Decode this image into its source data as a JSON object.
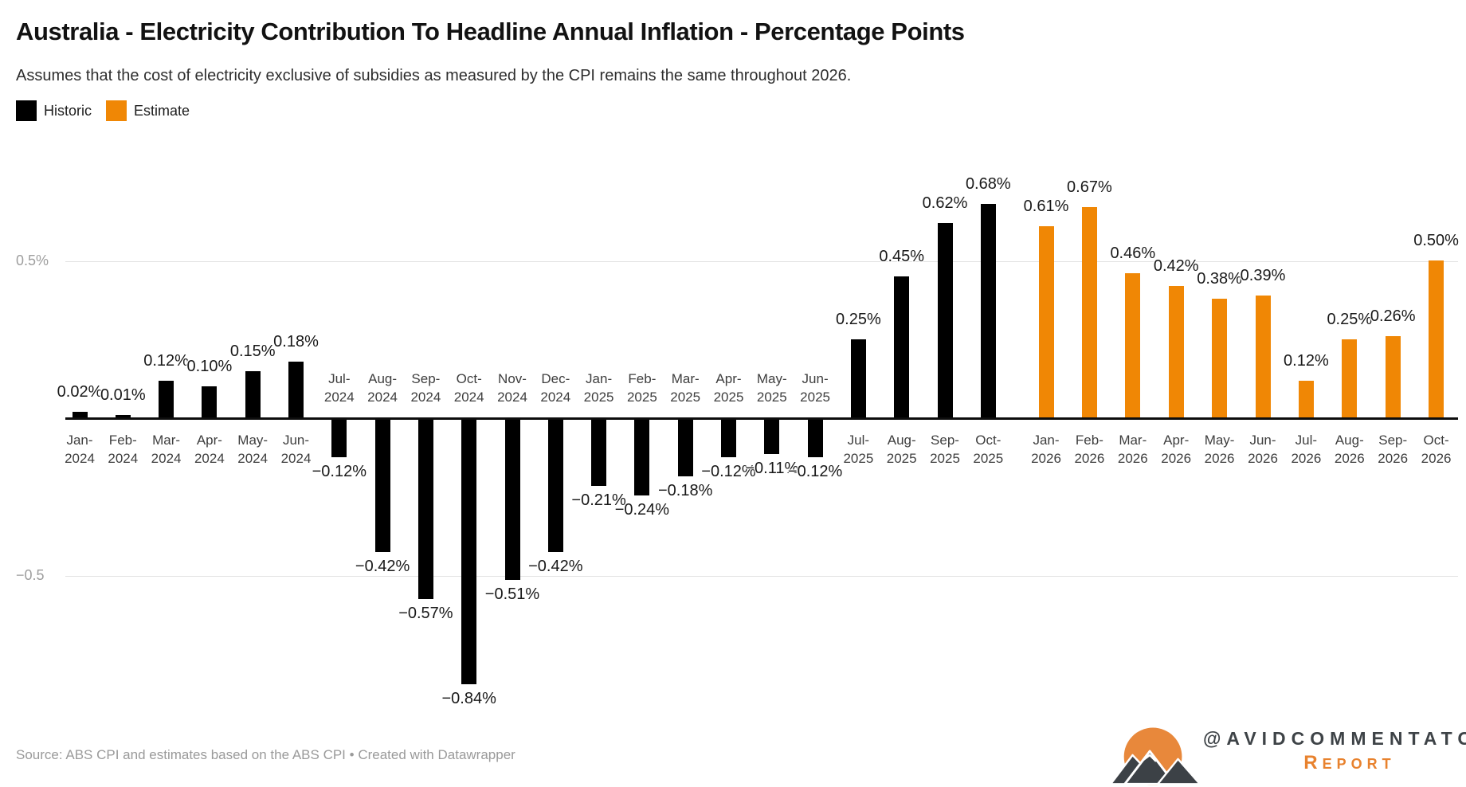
{
  "header": {
    "title": "Australia - Electricity Contribution To Headline Annual Inflation - Percentage Points",
    "subtitle": "Assumes that the cost of electricity exclusive of subsidies as measured by the CPI remains the same throughout 2026."
  },
  "legend": {
    "items": [
      {
        "label": "Historic",
        "color": "#000000"
      },
      {
        "label": "Estimate",
        "color": "#f08705"
      }
    ]
  },
  "footer": {
    "source": "Source: ABS CPI and estimates based on the ABS CPI",
    "separator": "•",
    "attribution": "Created with Datawrapper"
  },
  "logo": {
    "handle": "@AVIDCOMMENTATOR",
    "line2": "Report",
    "sun_color": "#e8883b",
    "mountain_color": "#3c4146",
    "text_color": "#3e4347",
    "report_color": "#e8822e"
  },
  "chart_data": {
    "type": "bar",
    "title": "Australia - Electricity Contribution To Headline Annual Inflation - Percentage Points",
    "subtitle": "Assumes that the cost of electricity exclusive of subsidies as measured by the CPI remains the same throughout 2026.",
    "unit": "%",
    "value_format": "0.00%",
    "xlabel": "",
    "ylabel": "",
    "ylim": [
      -0.9,
      0.75
    ],
    "grid": "horizontal",
    "legend_position": "top-left",
    "yticks": [
      {
        "value": 0.5,
        "label": "0.5%"
      },
      {
        "value": -0.5,
        "label": "−0.5"
      }
    ],
    "gap_note": "No columns for Nov-2025 and Dec-2025; estimate group starts at Jan-2026 after a wider gap",
    "series": [
      {
        "name": "Historic",
        "color": "#000000",
        "points": [
          [
            "Jan-2024",
            0.02
          ],
          [
            "Feb-2024",
            0.01
          ],
          [
            "Mar-2024",
            0.12
          ],
          [
            "Apr-2024",
            0.1
          ],
          [
            "May-2024",
            0.15
          ],
          [
            "Jun-2024",
            0.18
          ],
          [
            "Jul-2024",
            -0.12
          ],
          [
            "Aug-2024",
            -0.42
          ],
          [
            "Sep-2024",
            -0.57
          ],
          [
            "Oct-2024",
            -0.84
          ],
          [
            "Nov-2024",
            -0.51
          ],
          [
            "Dec-2024",
            -0.42
          ],
          [
            "Jan-2025",
            -0.21
          ],
          [
            "Feb-2025",
            -0.24
          ],
          [
            "Mar-2025",
            -0.18
          ],
          [
            "Apr-2025",
            -0.12
          ],
          [
            "May-2025",
            -0.11
          ],
          [
            "Jun-2025",
            -0.12
          ],
          [
            "Jul-2025",
            0.25
          ],
          [
            "Aug-2025",
            0.45
          ],
          [
            "Sep-2025",
            0.62
          ],
          [
            "Oct-2025",
            0.68
          ]
        ]
      },
      {
        "name": "Estimate",
        "color": "#f08705",
        "points": [
          [
            "Jan-2026",
            0.61
          ],
          [
            "Feb-2026",
            0.67
          ],
          [
            "Mar-2026",
            0.46
          ],
          [
            "Apr-2026",
            0.42
          ],
          [
            "May-2026",
            0.38
          ],
          [
            "Jun-2026",
            0.39
          ],
          [
            "Jul-2026",
            0.12
          ],
          [
            "Aug-2026",
            0.25
          ],
          [
            "Sep-2026",
            0.26
          ],
          [
            "Oct-2026",
            0.5
          ]
        ]
      }
    ]
  }
}
